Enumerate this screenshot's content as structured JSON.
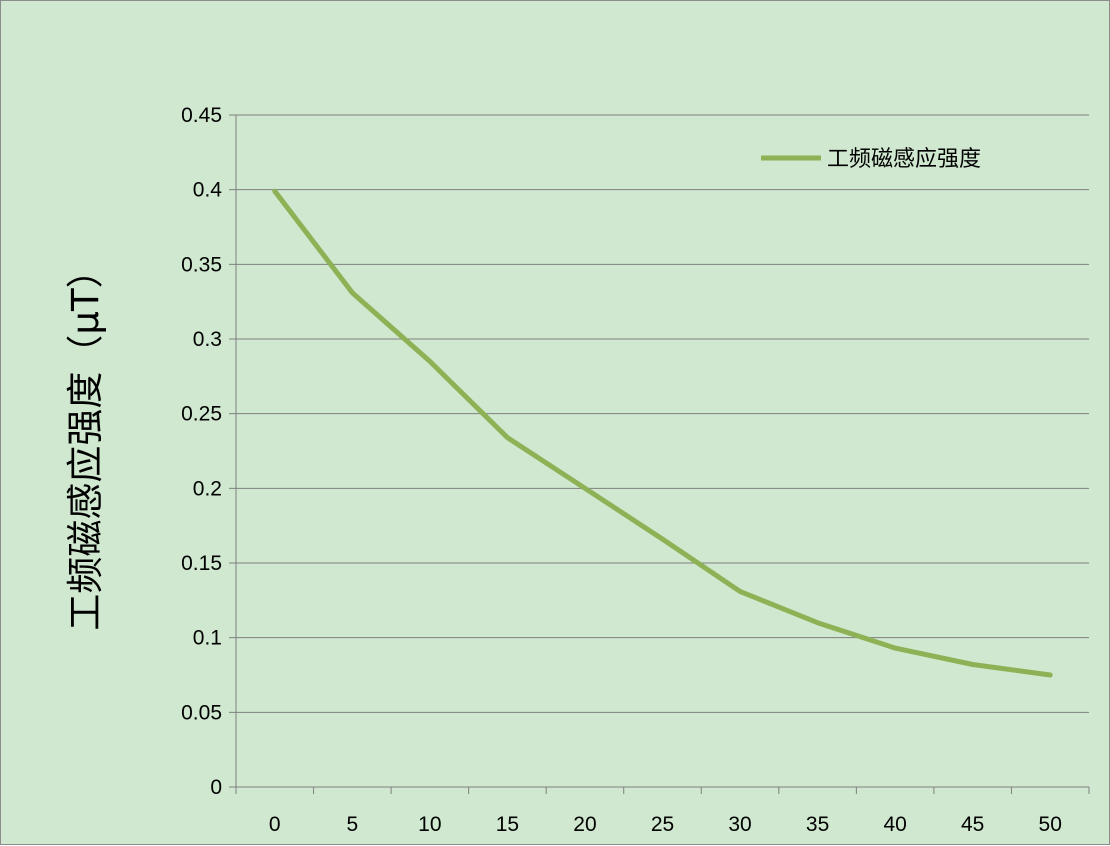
{
  "chart_data": {
    "type": "line",
    "title": "",
    "xlabel": "",
    "ylabel": "工频磁感应强度（μT）",
    "categories": [
      "0",
      "5",
      "10",
      "15",
      "20",
      "25",
      "30",
      "35",
      "40",
      "45",
      "50"
    ],
    "series": [
      {
        "name": "工频磁感应强度",
        "values": [
          0.399,
          0.331,
          0.285,
          0.234,
          0.2,
          0.166,
          0.131,
          0.11,
          0.093,
          0.082,
          0.075
        ],
        "color": "#8db255"
      }
    ],
    "ylim": [
      0,
      0.45
    ],
    "yticks": [
      "0",
      "0.05",
      "0.1",
      "0.15",
      "0.2",
      "0.25",
      "0.3",
      "0.35",
      "0.4",
      "0.45"
    ],
    "grid": "horizontal",
    "legend": "top-right",
    "background_color": "#cfe8cf",
    "gridline_color": "#7f7f7f"
  }
}
